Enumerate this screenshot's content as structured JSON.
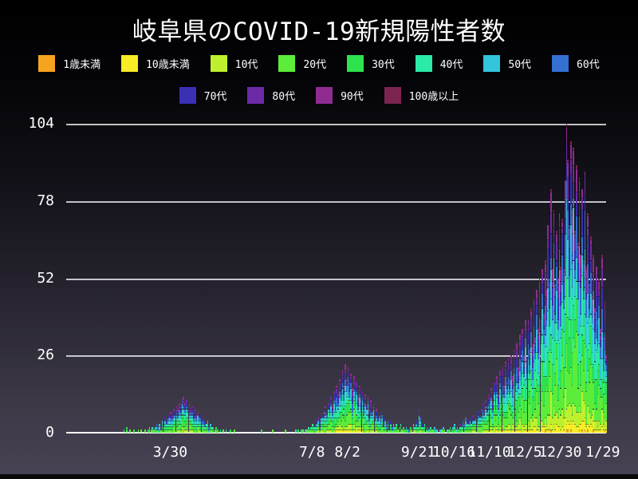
{
  "title": "岐阜県のCOVID-19新規陽性者数",
  "colors": {
    "background_top": "#000000",
    "background_bottom": "#474253",
    "grid": "#e9e9ee",
    "axis_line": "#ffffff",
    "text": "#ffffff"
  },
  "chart_data": {
    "type": "bar",
    "subtype": "stacked-daily",
    "title": "岐阜県のCOVID-19新規陽性者数",
    "xlabel": "",
    "ylabel": "",
    "ylim": [
      0,
      104
    ],
    "yticks": [
      0,
      26,
      52,
      78,
      104
    ],
    "ytick_labels": [
      "0",
      "26",
      "52",
      "78",
      "104"
    ],
    "grid": true,
    "legend_position": "top",
    "xticks": [
      {
        "label": "3/30",
        "day": 75
      },
      {
        "label": "7/8",
        "day": 175
      },
      {
        "label": "8/2",
        "day": 200
      },
      {
        "label": "9/21",
        "day": 250
      },
      {
        "label": "10/16",
        "day": 275
      },
      {
        "label": "11/10",
        "day": 300
      },
      {
        "label": "12/5",
        "day": 325
      },
      {
        "label": "12/30",
        "day": 350
      },
      {
        "label": "1/29",
        "day": 380
      }
    ],
    "days_span": 388,
    "age_groups": [
      {
        "label": "1歳未満",
        "color": "#F6A41F",
        "share": 0.005
      },
      {
        "label": "10歳未満",
        "color": "#F8EC25",
        "share": 0.03
      },
      {
        "label": "10代",
        "color": "#BFF02E",
        "share": 0.07
      },
      {
        "label": "20代",
        "color": "#5CEC3A",
        "share": 0.185
      },
      {
        "label": "30代",
        "color": "#2EE24E",
        "share": 0.15
      },
      {
        "label": "40代",
        "color": "#2BE9A6",
        "share": 0.14
      },
      {
        "label": "50代",
        "color": "#32C5DC",
        "share": 0.125
      },
      {
        "label": "60代",
        "color": "#346FD2",
        "share": 0.095
      },
      {
        "label": "70代",
        "color": "#3B2FB4",
        "share": 0.08
      },
      {
        "label": "80代",
        "color": "#6D2AA6",
        "share": 0.065
      },
      {
        "label": "90代",
        "color": "#8F2C90",
        "share": 0.045
      },
      {
        "label": "100歳以上",
        "color": "#7B2450",
        "share": 0.01
      }
    ],
    "legend_rows": [
      [
        0,
        1,
        2,
        3,
        4,
        5,
        6,
        7
      ],
      [
        8,
        9,
        10,
        11
      ]
    ],
    "daily_totals": [
      0,
      0,
      0,
      0,
      0,
      0,
      0,
      0,
      0,
      0,
      0,
      0,
      0,
      0,
      0,
      0,
      0,
      0,
      0,
      0,
      0,
      0,
      0,
      0,
      0,
      0,
      0,
      0,
      0,
      0,
      0,
      0,
      0,
      0,
      0,
      0,
      0,
      0,
      0,
      0,
      0,
      0,
      1,
      0,
      2,
      0,
      1,
      0,
      0,
      1,
      0,
      0,
      1,
      0,
      1,
      0,
      0,
      1,
      0,
      1,
      2,
      1,
      2,
      1,
      2,
      3,
      2,
      3,
      2,
      4,
      3,
      5,
      4,
      6,
      5,
      7,
      6,
      8,
      7,
      9,
      8,
      10,
      9,
      11,
      12,
      10,
      11,
      9,
      10,
      8,
      9,
      7,
      8,
      6,
      7,
      5,
      6,
      4,
      5,
      4,
      3,
      4,
      2,
      3,
      2,
      2,
      1,
      2,
      1,
      0,
      1,
      0,
      1,
      0,
      1,
      0,
      0,
      1,
      0,
      0,
      1,
      0,
      0,
      0,
      0,
      0,
      0,
      0,
      0,
      0,
      0,
      0,
      0,
      0,
      0,
      0,
      0,
      0,
      0,
      1,
      0,
      0,
      0,
      0,
      0,
      0,
      0,
      1,
      0,
      0,
      0,
      0,
      0,
      0,
      0,
      0,
      1,
      0,
      0,
      0,
      0,
      0,
      0,
      1,
      0,
      1,
      0,
      1,
      1,
      0,
      1,
      1,
      2,
      1,
      2,
      3,
      2,
      4,
      3,
      5,
      4,
      6,
      5,
      7,
      9,
      6,
      10,
      8,
      12,
      9,
      14,
      11,
      16,
      13,
      18,
      14,
      21,
      16,
      23,
      18,
      22,
      17,
      20,
      15,
      19,
      14,
      17,
      12,
      16,
      11,
      14,
      10,
      13,
      9,
      12,
      8,
      11,
      7,
      10,
      6,
      8,
      5,
      7,
      4,
      6,
      3,
      5,
      3,
      4,
      2,
      4,
      2,
      3,
      2,
      3,
      1,
      2,
      3,
      1,
      2,
      1,
      2,
      1,
      1,
      2,
      1,
      3,
      2,
      4,
      3,
      8,
      5,
      3,
      2,
      3,
      1,
      2,
      1,
      2,
      1,
      1,
      2,
      1,
      1,
      0,
      1,
      1,
      2,
      1,
      0,
      1,
      1,
      2,
      1,
      2,
      3,
      1,
      2,
      1,
      3,
      2,
      4,
      3,
      5,
      3,
      4,
      5,
      3,
      6,
      4,
      6,
      4,
      7,
      5,
      8,
      10,
      7,
      11,
      9,
      13,
      12,
      15,
      10,
      17,
      12,
      19,
      13,
      21,
      14,
      22,
      16,
      24,
      17,
      25,
      18,
      26,
      19,
      28,
      20,
      30,
      22,
      33,
      24,
      35,
      26,
      38,
      25,
      38,
      28,
      42,
      30,
      45,
      32,
      48,
      35,
      52,
      38,
      55,
      40,
      58,
      48,
      70,
      52,
      82,
      55,
      75,
      50,
      68,
      52,
      74,
      56,
      72,
      55,
      85,
      104,
      92,
      70,
      98,
      75,
      96,
      68,
      90,
      64,
      86,
      60,
      82,
      58,
      88,
      56,
      74,
      50,
      66,
      46,
      60,
      42,
      56,
      38,
      52,
      35,
      60,
      32,
      44,
      26
    ]
  }
}
